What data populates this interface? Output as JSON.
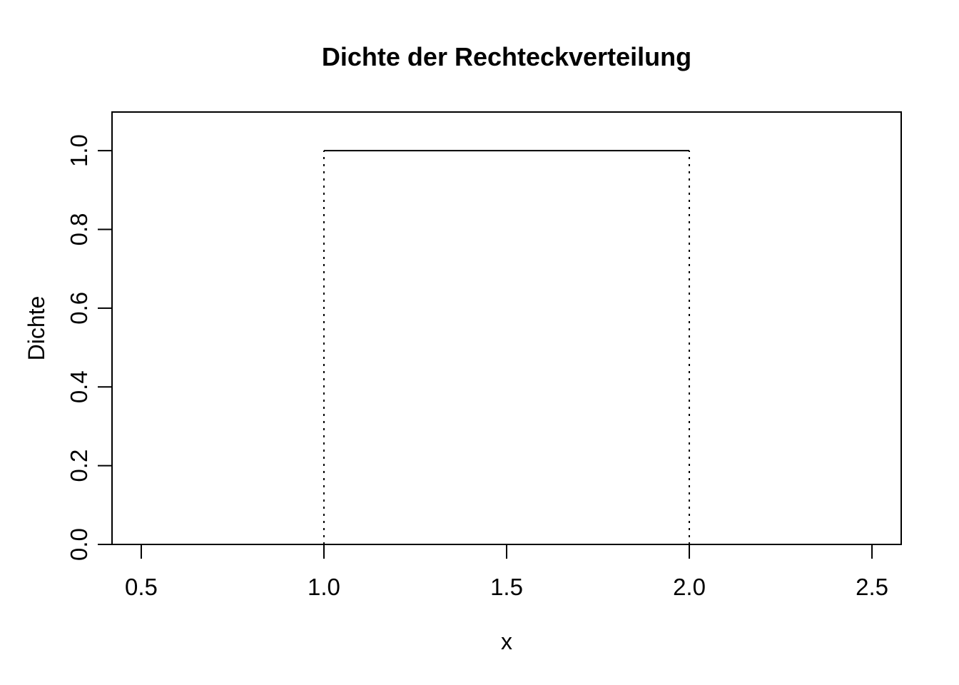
{
  "chart_data": {
    "type": "line",
    "title": "Dichte der Rechteckverteilung",
    "xlabel": "x",
    "ylabel": "Dichte",
    "xlim": [
      0.42,
      2.58
    ],
    "ylim": [
      0,
      1.098
    ],
    "grid": false,
    "legend": "none",
    "x_ticks": {
      "values": [
        0.5,
        1.0,
        1.5,
        2.0,
        2.5
      ],
      "labels": [
        "0.5",
        "1.0",
        "1.5",
        "2.0",
        "2.5"
      ]
    },
    "y_ticks": {
      "values": [
        0.0,
        0.2,
        0.4,
        0.6,
        0.8,
        1.0
      ],
      "labels": [
        "0.0",
        "0.2",
        "0.4",
        "0.6",
        "0.8",
        "1.0"
      ]
    },
    "distribution": {
      "name": "uniform-rectangular",
      "min": 1,
      "max": 2,
      "density_inside": 1,
      "density_outside": 0
    },
    "series": [
      {
        "name": "density-top",
        "style": "solid",
        "points": [
          [
            1,
            1
          ],
          [
            2,
            1
          ]
        ]
      },
      {
        "name": "density-left-edge",
        "style": "dotted",
        "points": [
          [
            1,
            0
          ],
          [
            1,
            1
          ]
        ]
      },
      {
        "name": "density-right-edge",
        "style": "dotted",
        "points": [
          [
            2,
            0
          ],
          [
            2,
            1
          ]
        ]
      }
    ],
    "colors": {
      "line": "#000000",
      "text": "#000000",
      "background": "#ffffff"
    }
  }
}
